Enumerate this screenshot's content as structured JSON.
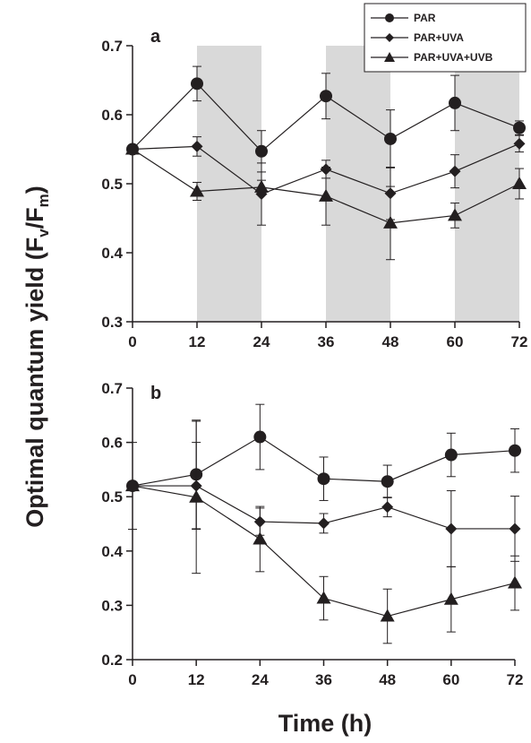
{
  "figure": {
    "ylabel_main": "Optimal quantum yield (F",
    "ylabel_sub_v": "v",
    "ylabel_slash": "/F",
    "ylabel_sub_m": "m",
    "ylabel_close": ")",
    "xlabel": "Time (h)"
  },
  "legend": {
    "items": [
      "PAR",
      "PAR+UVA",
      "PAR+UVA+UVB"
    ]
  },
  "colors": {
    "ink": "#231f20",
    "shade": "#d9d9d9"
  },
  "chart_data": [
    {
      "type": "line",
      "panel_label": "a",
      "x": [
        0,
        12,
        24,
        36,
        48,
        60,
        72
      ],
      "xticks": [
        0,
        12,
        24,
        36,
        48,
        60,
        72
      ],
      "yticks": [
        0.3,
        0.4,
        0.5,
        0.6,
        0.7
      ],
      "ytick_labels": [
        "0.3",
        "0.4",
        "0.5",
        "0.6",
        "0.7"
      ],
      "xlim": [
        0,
        72
      ],
      "ylim": [
        0.3,
        0.7
      ],
      "shaded_intervals": [
        [
          12,
          24
        ],
        [
          36,
          48
        ],
        [
          60,
          72
        ]
      ],
      "series": [
        {
          "name": "PAR",
          "marker": "circle",
          "values": [
            0.55,
            0.645,
            0.547,
            0.627,
            0.565,
            0.617,
            0.581
          ],
          "errors": [
            0,
            0.025,
            0.03,
            0.033,
            0.042,
            0.04,
            0.01
          ]
        },
        {
          "name": "PAR+UVA",
          "marker": "diamond",
          "values": [
            0.55,
            0.554,
            0.485,
            0.521,
            0.486,
            0.518,
            0.558
          ],
          "errors": [
            0,
            0.014,
            0.045,
            0.013,
            0.038,
            0.024,
            0.012
          ]
        },
        {
          "name": "PAR+UVA+UVB",
          "marker": "triangle",
          "values": [
            0.55,
            0.489,
            0.495,
            0.482,
            0.443,
            0.454,
            0.5
          ],
          "errors": [
            0,
            0.013,
            0.01,
            0.042,
            0.053,
            0.018,
            0.022
          ]
        }
      ]
    },
    {
      "type": "line",
      "panel_label": "b",
      "x": [
        0,
        12,
        24,
        36,
        48,
        60,
        72
      ],
      "xticks": [
        0,
        12,
        24,
        36,
        48,
        60,
        72
      ],
      "yticks": [
        0.2,
        0.3,
        0.4,
        0.5,
        0.6,
        0.7
      ],
      "ytick_labels": [
        "0.2",
        "0.3",
        "0.4",
        "0.5",
        "0.6",
        "0.7"
      ],
      "xlim": [
        0,
        72
      ],
      "ylim": [
        0.2,
        0.7
      ],
      "shaded_intervals": [],
      "series": [
        {
          "name": "PAR",
          "marker": "circle",
          "values": [
            0.52,
            0.541,
            0.61,
            0.533,
            0.528,
            0.577,
            0.585
          ],
          "errors": [
            0,
            0.1,
            0.06,
            0.04,
            0.03,
            0.04,
            0.04
          ]
        },
        {
          "name": "PAR+UVA",
          "marker": "diamond",
          "values": [
            0.52,
            0.52,
            0.454,
            0.451,
            0.481,
            0.441,
            0.441
          ],
          "errors": [
            0.08,
            0.08,
            0.025,
            0.018,
            0.018,
            0.07,
            0.06
          ]
        },
        {
          "name": "PAR+UVA+UVB",
          "marker": "triangle",
          "values": [
            0.52,
            0.499,
            0.422,
            0.313,
            0.28,
            0.311,
            0.341
          ],
          "errors": [
            0,
            0.14,
            0.06,
            0.04,
            0.05,
            0.06,
            0.05
          ]
        }
      ]
    }
  ]
}
